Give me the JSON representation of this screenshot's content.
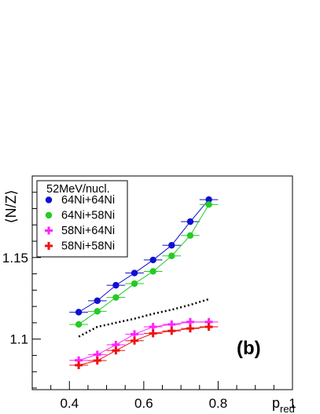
{
  "chart_data": {
    "type": "scatter",
    "title": "",
    "xlabel": "p",
    "xlabel_sub": "red",
    "ylabel": "⟨N/Z⟩",
    "xlim": [
      0.3,
      1.0
    ],
    "ylim": [
      1.069,
      1.2
    ],
    "x_ticks": [
      0.4,
      0.6,
      0.8,
      1
    ],
    "x_tick_labels": [
      "0.4",
      "0.6",
      "0.8",
      "1"
    ],
    "y_ticks": [
      1.1,
      1.15
    ],
    "y_tick_labels": [
      "1.1",
      "1.15"
    ],
    "grid": false,
    "legend_position": "top-left",
    "legend_title": "52MeV/nucl.",
    "annotation": "(b)",
    "x": [
      0.425,
      0.475,
      0.525,
      0.575,
      0.625,
      0.675,
      0.725,
      0.775
    ],
    "series": [
      {
        "name": "64Ni+64Ni",
        "color": "#1010d0",
        "marker": "circle",
        "values": [
          1.1165,
          1.1235,
          1.133,
          1.1405,
          1.1485,
          1.1575,
          1.172,
          1.1855
        ]
      },
      {
        "name": "64Ni+58Ni",
        "color": "#22cc22",
        "marker": "circle",
        "values": [
          1.109,
          1.117,
          1.1255,
          1.134,
          1.1415,
          1.151,
          1.1635,
          1.1825
        ]
      },
      {
        "name": "58Ni+64Ni",
        "color": "#ff22ff",
        "marker": "cross",
        "values": [
          1.087,
          1.0905,
          1.0965,
          1.103,
          1.1075,
          1.109,
          1.1105,
          1.1105
        ]
      },
      {
        "name": "58Ni+58Ni",
        "color": "#ee1111",
        "marker": "cross",
        "values": [
          1.084,
          1.0868,
          1.093,
          1.099,
          1.1035,
          1.105,
          1.1065,
          1.1075
        ]
      }
    ],
    "dotted_line": {
      "color": "#000000",
      "x": [
        0.425,
        0.475,
        0.525,
        0.575,
        0.625,
        0.675,
        0.725,
        0.775
      ],
      "values": [
        1.1015,
        1.1075,
        1.11,
        1.1125,
        1.1155,
        1.118,
        1.121,
        1.1245
      ]
    },
    "x_error": 0.025
  }
}
